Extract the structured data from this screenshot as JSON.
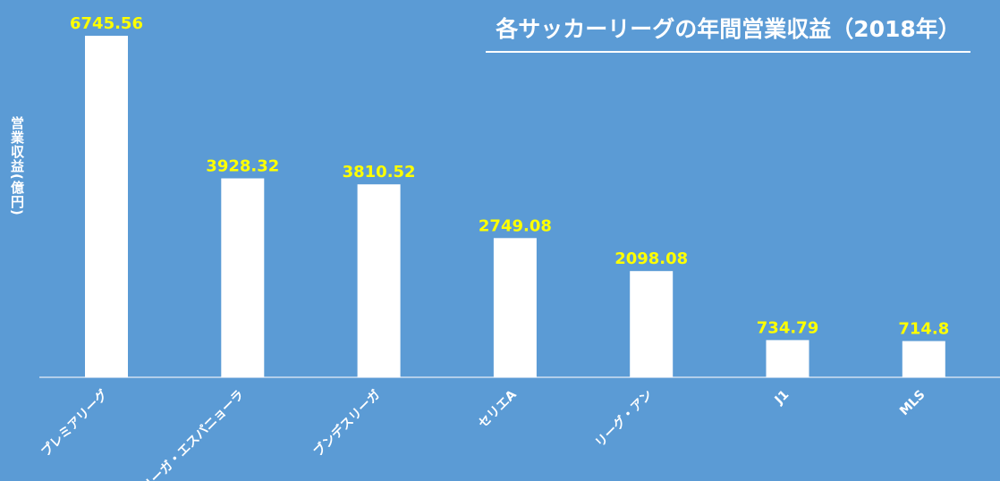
{
  "chart_data": {
    "type": "bar",
    "title": "各サッカーリーグの年間営業収益（2018年）",
    "ylabel": "営業収益(億円)",
    "xlabel": "",
    "categories": [
      "プレミアリーグ",
      "リーガ・エスパニョーラ",
      "ブンデスリーガ",
      "セリエA",
      "リーグ・アン",
      "J1",
      "MLS"
    ],
    "values": [
      6745.56,
      3928.32,
      3810.52,
      2749.08,
      2098.08,
      734.79,
      714.8
    ],
    "value_labels": [
      "6745.56",
      "3928.32",
      "3810.52",
      "2749.08",
      "2098.08",
      "734.79",
      "714.8"
    ],
    "ylim": [
      0,
      6745.56
    ],
    "grid": false,
    "legend": "none"
  },
  "colors": {
    "background": "#5b9bd5",
    "bar": "#ffffff",
    "data_label": "#ffff00",
    "text": "#ffffff"
  }
}
